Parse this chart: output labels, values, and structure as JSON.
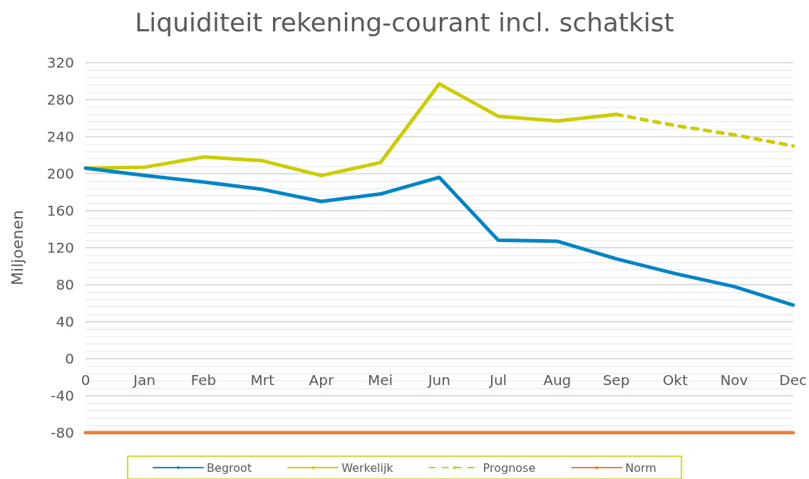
{
  "chart_data": {
    "type": "line",
    "title": "Liquiditeit rekening-courant incl. schatkist",
    "ylabel": "Miljoenen",
    "categories": [
      "0",
      "Jan",
      "Feb",
      "Mrt",
      "Apr",
      "Mei",
      "Jun",
      "Jul",
      "Aug",
      "Sep",
      "Okt",
      "Nov",
      "Dec"
    ],
    "series": [
      {
        "name": "Begroot",
        "color": "#0084c8",
        "values": [
          206,
          198,
          191,
          183,
          170,
          178,
          196,
          128,
          127,
          108,
          92,
          78,
          58
        ]
      },
      {
        "name": "Werkelijk",
        "color": "#cccc00",
        "values": [
          206,
          207,
          218,
          214,
          198,
          212,
          297,
          262,
          257,
          264,
          null,
          null,
          null
        ]
      },
      {
        "name": "Prognose",
        "color": "#cccc00",
        "line_style": "dashed",
        "values": [
          null,
          null,
          null,
          null,
          null,
          null,
          null,
          null,
          null,
          264,
          252,
          242,
          230
        ]
      },
      {
        "name": "Norm",
        "color": "#ed7d31",
        "values": [
          -80,
          -80,
          -80,
          -80,
          -80,
          -80,
          -80,
          -80,
          -80,
          -80,
          -80,
          -80,
          -80
        ]
      }
    ],
    "ylim": [
      -80,
      320
    ],
    "yticks": [
      -80,
      -40,
      0,
      40,
      80,
      120,
      160,
      200,
      240,
      280,
      320
    ],
    "grid": "y",
    "legend": "bottom",
    "marker": "none",
    "line_style": "solid"
  }
}
